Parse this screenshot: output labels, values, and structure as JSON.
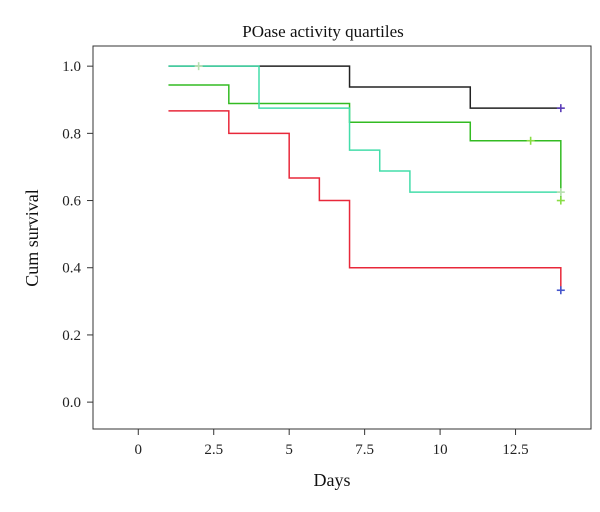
{
  "chart_data": {
    "type": "line",
    "step": "post",
    "title": "POase activity quartiles",
    "xlabel": "Days",
    "ylabel": "Cum survival",
    "xlim": [
      -1.5,
      15
    ],
    "ylim": [
      -0.08,
      1.06
    ],
    "xticks": [
      0,
      2.5,
      5,
      7.5,
      10,
      12.5
    ],
    "xtick_labels": [
      "0",
      "2.5",
      "5",
      "7.5",
      "10",
      "12.5"
    ],
    "yticks": [
      0.0,
      0.2,
      0.4,
      0.6,
      0.8,
      1.0
    ],
    "ytick_labels": [
      "0.0",
      "0.2",
      "0.4",
      "0.6",
      "0.8",
      "1.0"
    ],
    "grid": false,
    "series": [
      {
        "color": "#222222",
        "censor_color": "#5b3db8",
        "x": [
          1,
          7,
          11,
          14
        ],
        "y": [
          1.0,
          0.938,
          0.875,
          0.875
        ],
        "censored": [
          [
            14,
            0.875
          ]
        ]
      },
      {
        "color": "#33bb22",
        "censor_color": "#88dd44",
        "x": [
          1,
          3,
          7,
          11,
          14,
          14
        ],
        "y": [
          0.944,
          0.889,
          0.833,
          0.778,
          0.778,
          0.6
        ],
        "censored": [
          [
            13,
            0.778
          ],
          [
            14,
            0.6
          ]
        ]
      },
      {
        "color": "#44ddaa",
        "censor_color": "#b8e0b0",
        "x": [
          1,
          4,
          7,
          8,
          9,
          14
        ],
        "y": [
          1.0,
          0.875,
          0.75,
          0.688,
          0.625,
          0.625
        ],
        "censored": [
          [
            2,
            1.0
          ],
          [
            14,
            0.625
          ]
        ]
      },
      {
        "color": "#e8283a",
        "censor_color": "#4455cc",
        "x": [
          1,
          3,
          5,
          6,
          7,
          14,
          14
        ],
        "y": [
          0.867,
          0.8,
          0.667,
          0.6,
          0.4,
          0.4,
          0.333
        ],
        "censored": [
          [
            14,
            0.333
          ]
        ]
      }
    ]
  }
}
